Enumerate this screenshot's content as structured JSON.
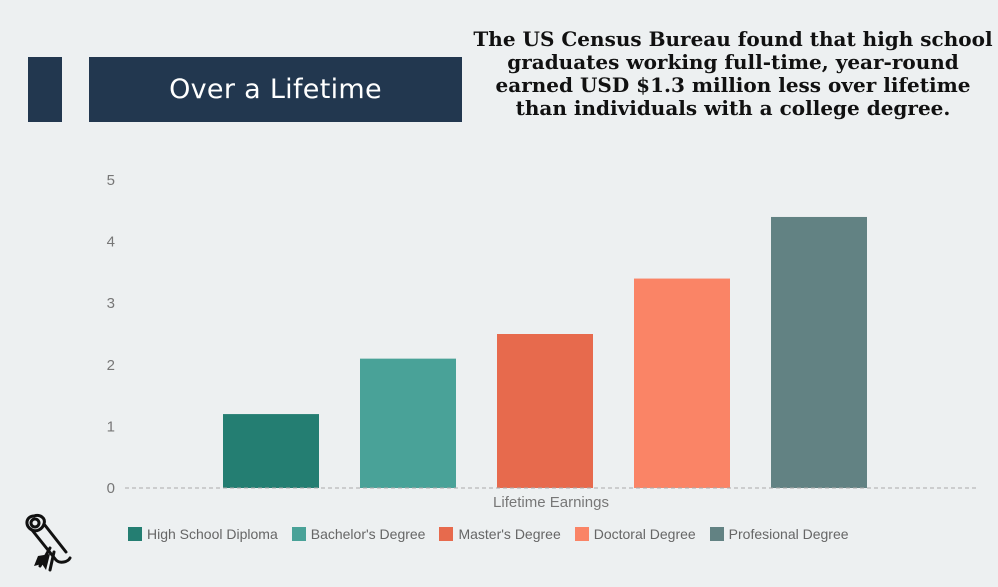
{
  "title_banner": {
    "text": "Over a Lifetime"
  },
  "headline": {
    "lines": [
      "The US Census Bureau found that high school",
      "graduates working full-time, year-round",
      "earned USD  $1.3 million less over lifetime",
      "than individuals with a college degree."
    ]
  },
  "icon": {
    "name": "diploma-scroll-icon"
  },
  "chart_data": {
    "type": "bar",
    "title": "",
    "xlabel": "Lifetime Earnings",
    "ylabel": "",
    "ylim": [
      0,
      5
    ],
    "yticks": [
      0,
      1,
      2,
      3,
      4,
      5
    ],
    "grid": false,
    "zero_line": "dashed",
    "legend_position": "bottom",
    "categories": [
      "Lifetime Earnings"
    ],
    "series": [
      {
        "name": "High School Diploma",
        "values": [
          1.2
        ],
        "color": "#247e72"
      },
      {
        "name": "Bachelor's Degree",
        "values": [
          2.1
        ],
        "color": "#49a298"
      },
      {
        "name": "Master's Degree",
        "values": [
          2.5
        ],
        "color": "#e76a4d"
      },
      {
        "name": "Doctoral Degree",
        "values": [
          3.4
        ],
        "color": "#fa8466"
      },
      {
        "name": "Profesional Degree",
        "values": [
          4.4
        ],
        "color": "#628283"
      }
    ]
  }
}
